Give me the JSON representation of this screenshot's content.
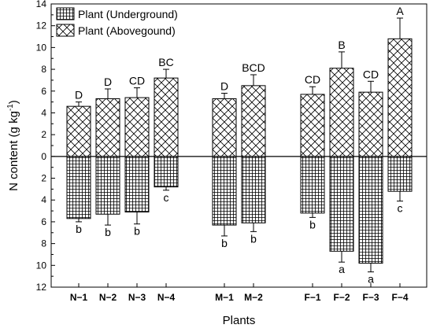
{
  "chart_data": {
    "type": "bar",
    "xlabel": "Plants",
    "ylabel": "N content (g kg",
    "ylabel_sup": "-1",
    "ylabel_close": ")",
    "ylim": [
      -12,
      14
    ],
    "ytick_values": [
      -12,
      -10,
      -8,
      -6,
      -4,
      -2,
      0,
      2,
      4,
      6,
      8,
      10,
      12,
      14
    ],
    "ytick_labels": [
      "12",
      "10",
      "8",
      "6",
      "4",
      "2",
      "0",
      "2",
      "4",
      "6",
      "8",
      "10",
      "12",
      "14"
    ],
    "categories": [
      "N-1",
      "N-2",
      "N-3",
      "N-4",
      "M-1",
      "M-2",
      "F-1",
      "F-2",
      "F-3",
      "F-4"
    ],
    "category_labels": [
      "N−1",
      "N−2",
      "N−3",
      "N−4",
      "M−1",
      "M−2",
      "F−1",
      "F−2",
      "F−3",
      "F−4"
    ],
    "zero_line": true,
    "grid": false,
    "legend_position": "top-left",
    "series": [
      {
        "name": "Plant (Underground)",
        "pattern": "grid",
        "values": [
          -5.7,
          -5.3,
          -5.1,
          -2.8,
          -6.3,
          -6.1,
          -5.2,
          -8.7,
          -9.8,
          -3.2
        ],
        "errors": [
          0.3,
          1.0,
          1.1,
          0.3,
          1.0,
          0.8,
          0.4,
          1.0,
          0.8,
          0.9
        ],
        "labels": [
          "b",
          "b",
          "b",
          "c",
          "b",
          "b",
          "b",
          "a",
          "a",
          "c"
        ]
      },
      {
        "name": "Plant (Abovegound)",
        "pattern": "crosshatch",
        "values": [
          4.6,
          5.3,
          5.4,
          7.2,
          5.3,
          6.5,
          5.7,
          8.1,
          5.9,
          10.8
        ],
        "errors": [
          0.4,
          0.9,
          0.9,
          0.8,
          0.5,
          1.0,
          0.7,
          1.5,
          1.0,
          1.9
        ],
        "labels": [
          "D",
          "D",
          "CD",
          "BC",
          "D",
          "BCD",
          "CD",
          "B",
          "CD",
          "A"
        ]
      }
    ]
  }
}
